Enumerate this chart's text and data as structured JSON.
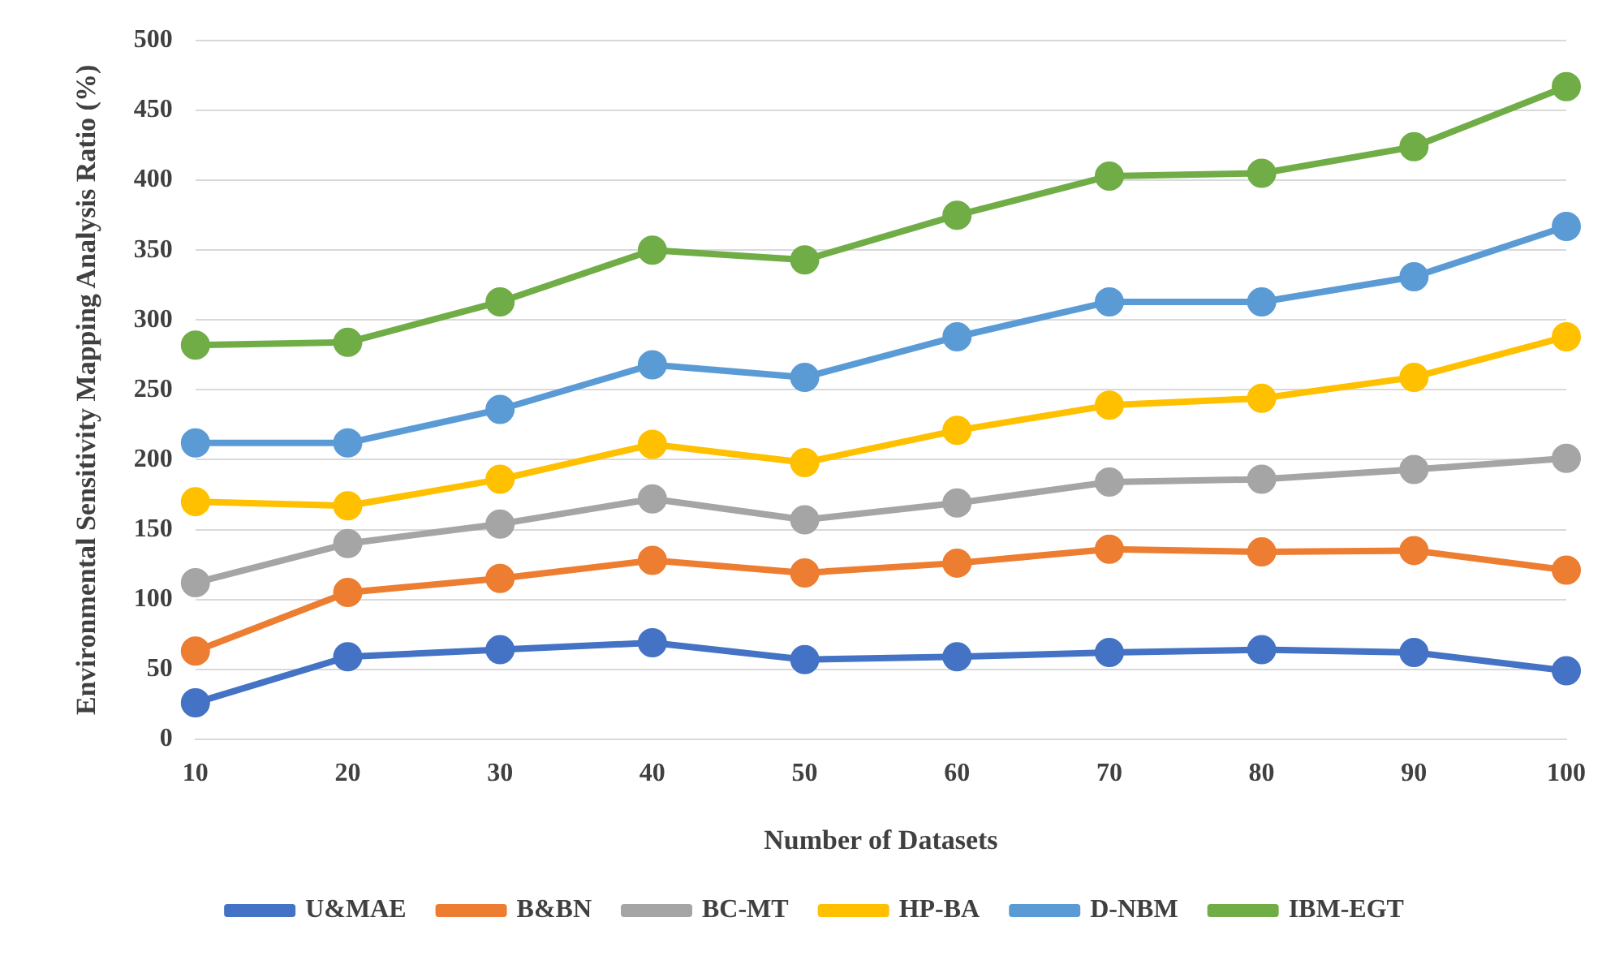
{
  "chart_data": {
    "type": "line",
    "xlabel": "Number of Datasets",
    "ylabel": "Environmental Sensitivity Mapping Analysis Ratio (%)",
    "categories": [
      "10",
      "20",
      "30",
      "40",
      "50",
      "60",
      "70",
      "80",
      "90",
      "100"
    ],
    "ylim": [
      0,
      500
    ],
    "yticks": [
      0,
      50,
      100,
      150,
      200,
      250,
      300,
      350,
      400,
      450,
      500
    ],
    "grid": "y",
    "legend": "bottom",
    "marker": "circle",
    "line_style": "solid",
    "series": [
      {
        "name": "U&MAE",
        "color": "#4472c4",
        "values": [
          26,
          59,
          64,
          69,
          57,
          59,
          62,
          64,
          62,
          49
        ]
      },
      {
        "name": "B&BN",
        "color": "#ed7d31",
        "values": [
          63,
          105,
          115,
          128,
          119,
          126,
          136,
          134,
          135,
          121
        ]
      },
      {
        "name": "BC-MT",
        "color": "#a5a5a5",
        "values": [
          112,
          140,
          154,
          172,
          157,
          169,
          184,
          186,
          193,
          201
        ]
      },
      {
        "name": "HP-BA",
        "color": "#ffc000",
        "values": [
          170,
          167,
          186,
          211,
          198,
          221,
          239,
          244,
          259,
          288
        ]
      },
      {
        "name": "D-NBM",
        "color": "#5b9bd5",
        "values": [
          212,
          212,
          236,
          268,
          259,
          288,
          313,
          313,
          331,
          367
        ]
      },
      {
        "name": "IBM-EGT",
        "color": "#70ad47",
        "values": [
          282,
          284,
          313,
          350,
          343,
          375,
          403,
          405,
          424,
          467
        ]
      }
    ]
  }
}
